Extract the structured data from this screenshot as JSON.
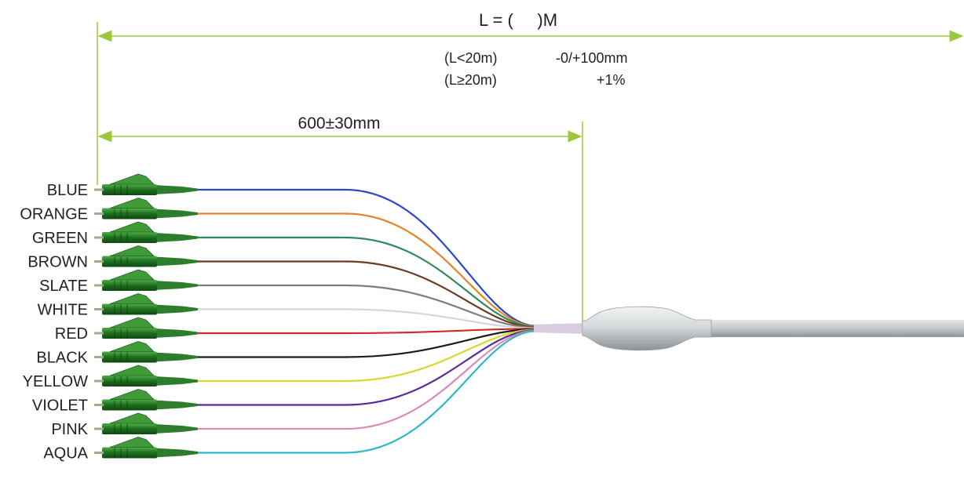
{
  "dimensions": {
    "total_length": "L = (     )M",
    "tolerance_rows": [
      {
        "condition": "(L<20m)",
        "value": "-0/+100mm"
      },
      {
        "condition": "(L≥20m)",
        "value": "+1%"
      }
    ],
    "breakout_length": "600±30mm"
  },
  "fibers": [
    {
      "label": "BLUE",
      "color": "#2a47c6"
    },
    {
      "label": "ORANGE",
      "color": "#e0852a"
    },
    {
      "label": "GREEN",
      "color": "#2f8a5a"
    },
    {
      "label": "BROWN",
      "color": "#6b3a1f"
    },
    {
      "label": "SLATE",
      "color": "#7d7d7d"
    },
    {
      "label": "WHITE",
      "color": "#d8d4dc"
    },
    {
      "label": "RED",
      "color": "#d02a2a"
    },
    {
      "label": "BLACK",
      "color": "#1a1a1a"
    },
    {
      "label": "YELLOW",
      "color": "#d8d82a"
    },
    {
      "label": "VIOLET",
      "color": "#5a2a9a"
    },
    {
      "label": "PINK",
      "color": "#d88ab8"
    },
    {
      "label": "AQUA",
      "color": "#2ab8c8"
    }
  ],
  "colors": {
    "dimension_line": "#9cc93c",
    "connector_body": "#1d6a1d",
    "connector_light": "#3f9a3a",
    "boot": "#2d7d2d",
    "furcation": "#cfd3d6",
    "trunk_cable": "#c5c9cc"
  }
}
